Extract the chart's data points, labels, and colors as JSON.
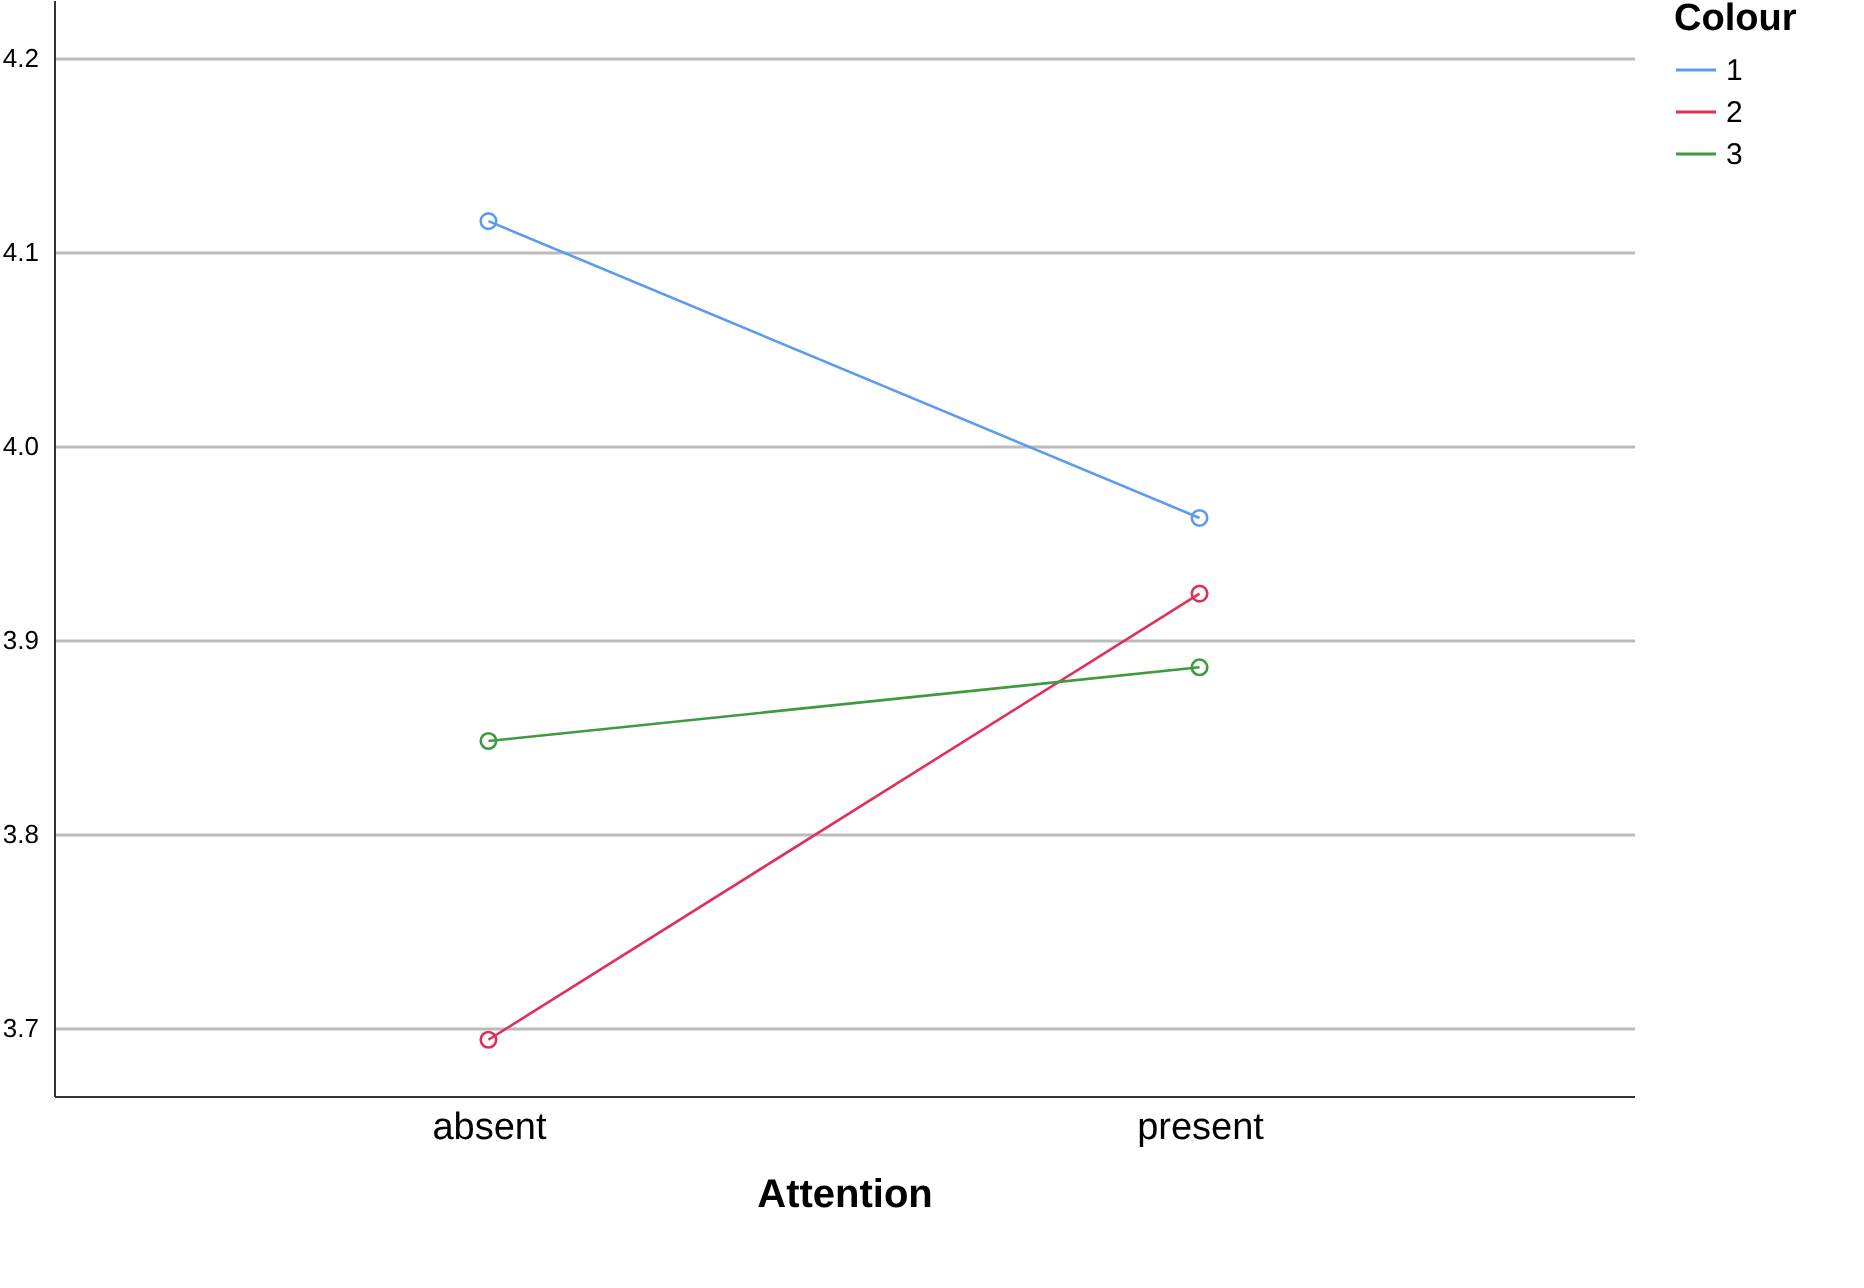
{
  "chart_data": {
    "type": "line",
    "xlabel": "Attention",
    "legend_title": "Colour",
    "categories": [
      "absent",
      "present"
    ],
    "series": [
      {
        "name": "1",
        "color": "#5b9bee",
        "values": [
          4.116,
          3.963
        ]
      },
      {
        "name": "2",
        "color": "#e0305a",
        "values": [
          3.694,
          3.924
        ]
      },
      {
        "name": "3",
        "color": "#3e9a3e",
        "values": [
          3.848,
          3.886
        ]
      }
    ],
    "ylim": [
      3.665,
      4.23
    ],
    "yticks": [
      3.7,
      3.8,
      3.9,
      {
        "value": 4,
        "label": "4.0"
      },
      4.1,
      4.2
    ],
    "grid": "y",
    "legend": "top right",
    "marker": "circle",
    "line_style": "solid"
  }
}
